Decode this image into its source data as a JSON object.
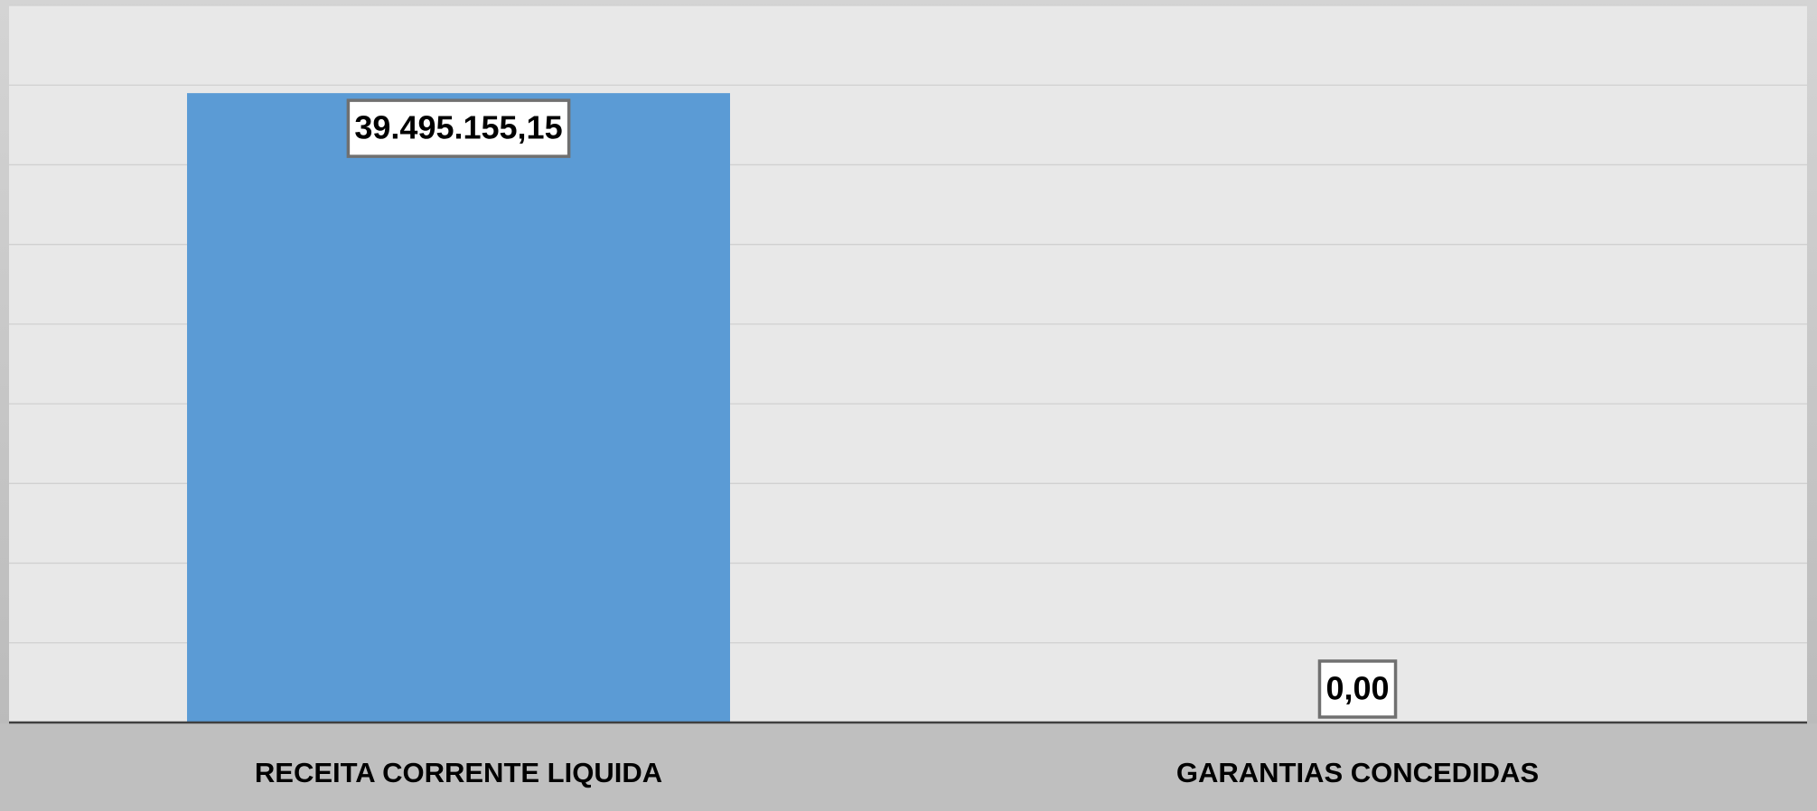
{
  "chart_data": {
    "type": "bar",
    "categories": [
      "RECEITA CORRENTE LIQUIDA",
      "GARANTIAS CONCEDIDAS"
    ],
    "values": [
      39495155.15,
      0
    ],
    "value_labels": [
      "39.495.155,15",
      "0,00"
    ],
    "color": "#5b9bd5",
    "ylim": [
      0,
      45000000
    ],
    "yticks": [
      0,
      5000000,
      10000000,
      15000000,
      20000000,
      25000000,
      30000000,
      35000000,
      40000000,
      45000000
    ],
    "grid": true
  }
}
